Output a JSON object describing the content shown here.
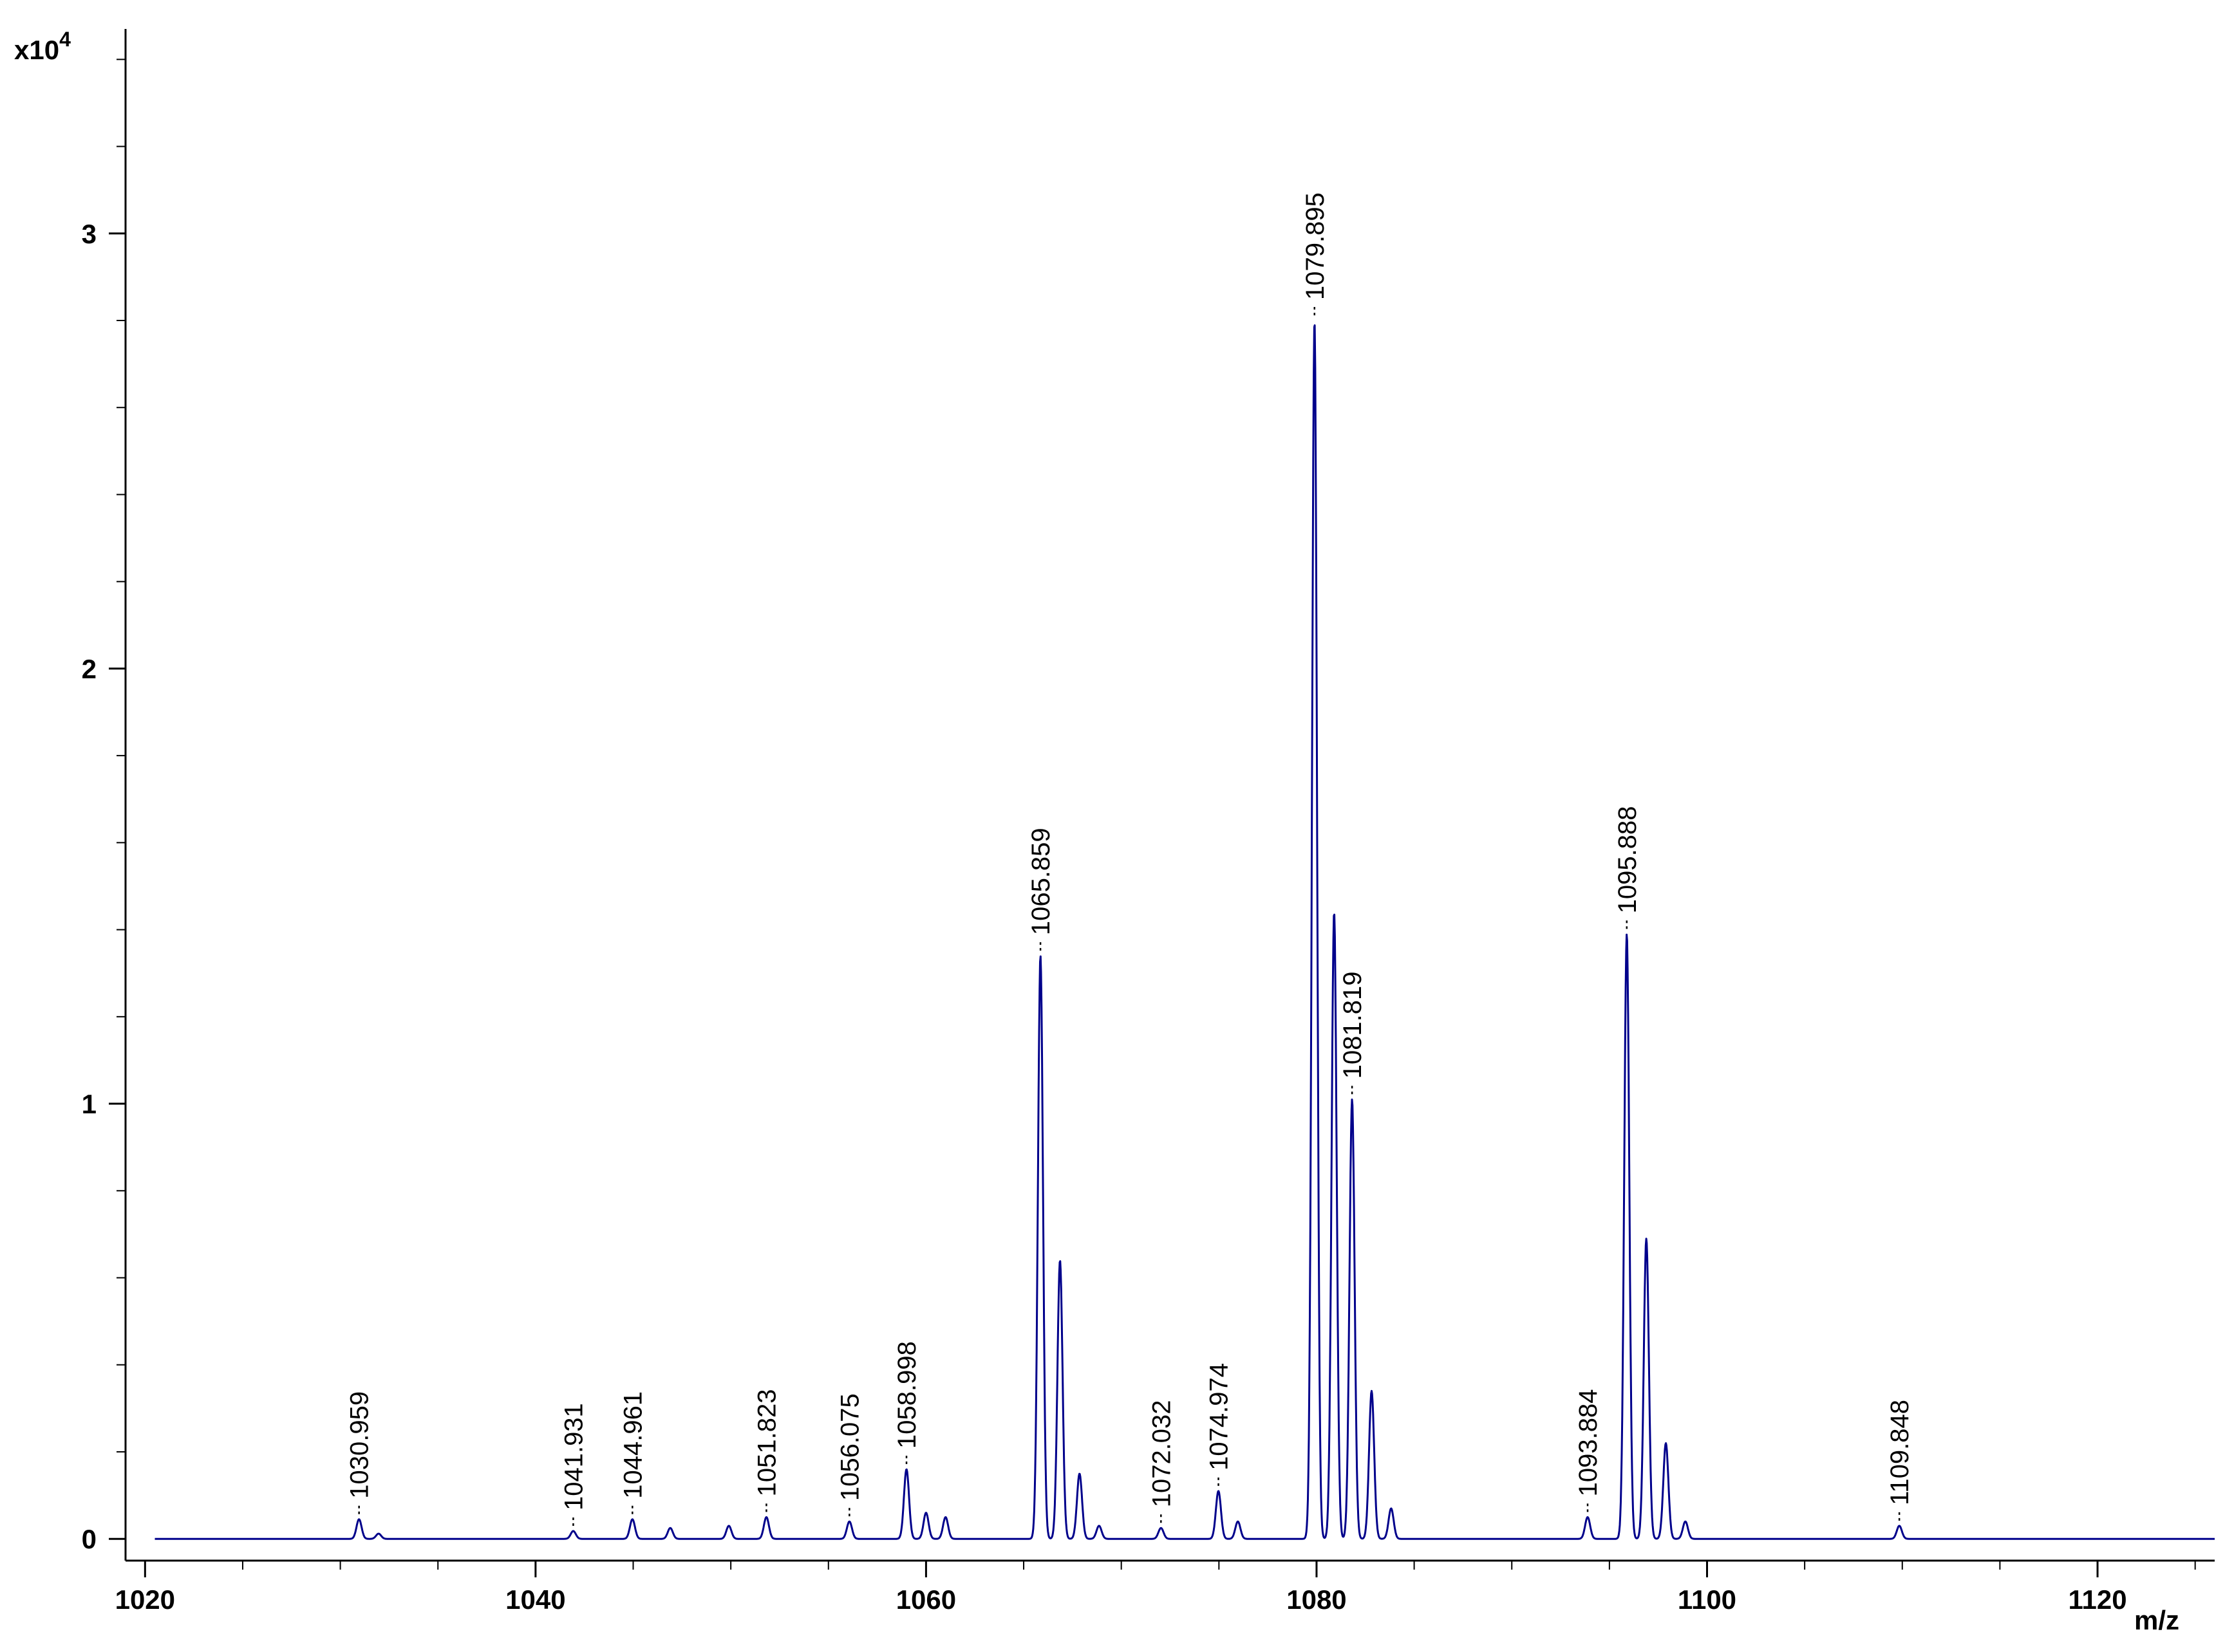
{
  "chart_data": {
    "type": "line",
    "title": "",
    "xlabel": "m/z",
    "ylabel": "",
    "y_multiplier_label": "x10",
    "y_multiplier_exponent": "4",
    "xlim": [
      1019,
      1126
    ],
    "ylim": [
      -0.05,
      3.47
    ],
    "x_ticks": [
      {
        "value": 1020,
        "label": "1020"
      },
      {
        "value": 1040,
        "label": "1040"
      },
      {
        "value": 1060,
        "label": "1060"
      },
      {
        "value": 1080,
        "label": "1080"
      },
      {
        "value": 1100,
        "label": "1100"
      },
      {
        "value": 1120,
        "label": "1120"
      }
    ],
    "y_ticks": [
      {
        "value": 0,
        "label": "0"
      },
      {
        "value": 1,
        "label": "1"
      },
      {
        "value": 2,
        "label": "2"
      },
      {
        "value": 3,
        "label": "3"
      }
    ],
    "grid": false,
    "series_color": "#00008b",
    "peaks": [
      {
        "mz": 1030.959,
        "intensity": 0.045
      },
      {
        "mz": 1031.96,
        "intensity": 0.012
      },
      {
        "mz": 1041.931,
        "intensity": 0.018
      },
      {
        "mz": 1044.961,
        "intensity": 0.045
      },
      {
        "mz": 1046.9,
        "intensity": 0.025
      },
      {
        "mz": 1049.9,
        "intensity": 0.03
      },
      {
        "mz": 1051.823,
        "intensity": 0.05
      },
      {
        "mz": 1056.075,
        "intensity": 0.04
      },
      {
        "mz": 1058.998,
        "intensity": 0.16
      },
      {
        "mz": 1060.0,
        "intensity": 0.06
      },
      {
        "mz": 1061.0,
        "intensity": 0.05
      },
      {
        "mz": 1065.859,
        "intensity": 1.34
      },
      {
        "mz": 1066.86,
        "intensity": 0.64
      },
      {
        "mz": 1067.86,
        "intensity": 0.15
      },
      {
        "mz": 1068.86,
        "intensity": 0.03
      },
      {
        "mz": 1072.032,
        "intensity": 0.025
      },
      {
        "mz": 1074.974,
        "intensity": 0.11
      },
      {
        "mz": 1075.97,
        "intensity": 0.04
      },
      {
        "mz": 1079.895,
        "intensity": 2.8
      },
      {
        "mz": 1080.9,
        "intensity": 1.44
      },
      {
        "mz": 1081.819,
        "intensity": 1.01
      },
      {
        "mz": 1082.82,
        "intensity": 0.34
      },
      {
        "mz": 1083.82,
        "intensity": 0.07
      },
      {
        "mz": 1093.884,
        "intensity": 0.05
      },
      {
        "mz": 1095.888,
        "intensity": 1.39
      },
      {
        "mz": 1096.89,
        "intensity": 0.69
      },
      {
        "mz": 1097.89,
        "intensity": 0.22
      },
      {
        "mz": 1098.89,
        "intensity": 0.04
      },
      {
        "mz": 1109.848,
        "intensity": 0.03
      }
    ],
    "peak_labels": [
      {
        "mz": 1030.959,
        "label": "1030.959",
        "intensity": 0.045
      },
      {
        "mz": 1041.931,
        "label": "1041.931",
        "intensity": 0.018
      },
      {
        "mz": 1044.961,
        "label": "1044.961",
        "intensity": 0.045
      },
      {
        "mz": 1051.823,
        "label": "1051.823",
        "intensity": 0.05
      },
      {
        "mz": 1056.075,
        "label": "1056.075",
        "intensity": 0.04
      },
      {
        "mz": 1058.998,
        "label": "1058.998",
        "intensity": 0.16
      },
      {
        "mz": 1065.859,
        "label": "1065.859",
        "intensity": 1.34
      },
      {
        "mz": 1072.032,
        "label": "1072.032",
        "intensity": 0.025
      },
      {
        "mz": 1074.974,
        "label": "1074.974",
        "intensity": 0.11
      },
      {
        "mz": 1079.895,
        "label": "1079.895",
        "intensity": 2.8
      },
      {
        "mz": 1081.819,
        "label": "1081.819",
        "intensity": 1.01
      },
      {
        "mz": 1093.884,
        "label": "1093.884",
        "intensity": 0.05
      },
      {
        "mz": 1095.888,
        "label": "1095.888",
        "intensity": 1.39
      },
      {
        "mz": 1109.848,
        "label": "1109.848",
        "intensity": 0.03
      }
    ]
  }
}
